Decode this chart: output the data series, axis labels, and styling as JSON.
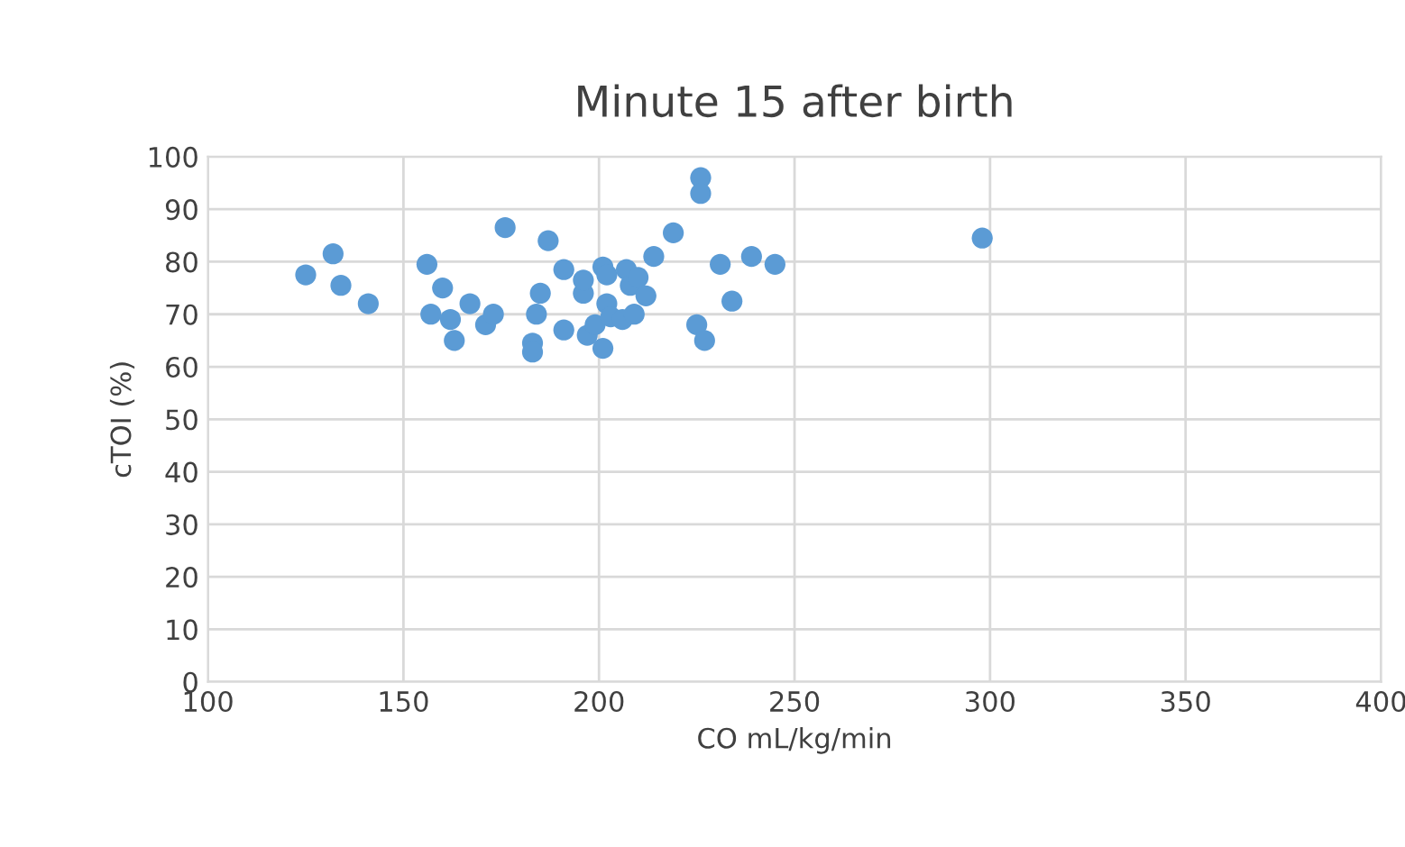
{
  "chart_data": {
    "type": "scatter",
    "title": "Minute 15 after birth",
    "xlabel": "CO mL/kg/min",
    "ylabel": "cTOI (%)",
    "x": [
      125,
      132,
      134,
      141,
      156,
      157,
      160,
      162,
      163,
      167,
      171,
      173,
      176,
      183,
      183,
      184,
      185,
      187,
      191,
      191,
      196,
      196,
      197,
      199,
      201,
      202,
      202,
      201,
      203,
      206,
      207,
      208,
      209,
      210,
      212,
      214,
      219,
      225,
      226,
      226,
      227,
      231,
      234,
      239,
      245,
      298
    ],
    "values": [
      77.5,
      81.5,
      75.5,
      72,
      79.5,
      70,
      75,
      69,
      65,
      72,
      68,
      70,
      86.5,
      64.5,
      62.8,
      70,
      74,
      84,
      78.5,
      67,
      74,
      76.5,
      66,
      68,
      79,
      72,
      77.5,
      63.5,
      69.5,
      69,
      78.5,
      75.5,
      70,
      77,
      73.5,
      81,
      85.5,
      68,
      96,
      93,
      65,
      79.5,
      72.5,
      81,
      79.5,
      84.5
    ],
    "color": "#5b9bd5",
    "marker": "circle",
    "xlim": [
      100,
      400
    ],
    "xticks": [
      100,
      150,
      200,
      250,
      300,
      350,
      400
    ],
    "ylim": [
      0,
      100
    ],
    "yticks": [
      0,
      10,
      20,
      30,
      40,
      50,
      60,
      70,
      80,
      90,
      100
    ],
    "grid": true
  }
}
